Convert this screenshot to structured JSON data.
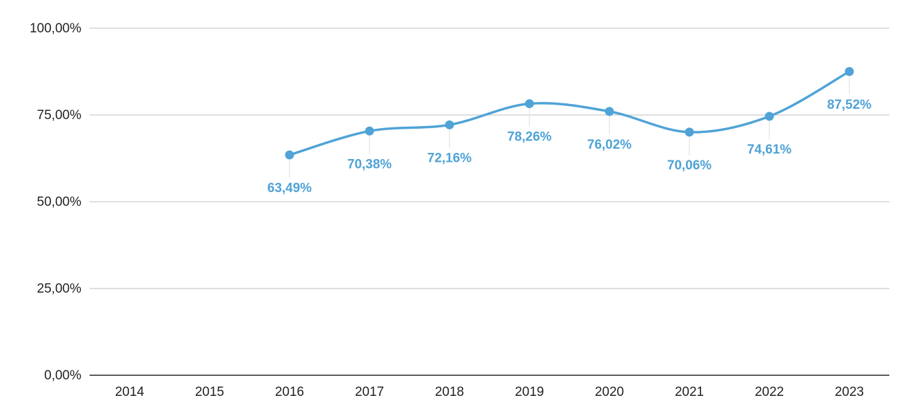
{
  "chart_data": {
    "type": "line",
    "title": "",
    "xlabel": "",
    "ylabel": "",
    "categories": [
      "2014",
      "2015",
      "2016",
      "2017",
      "2018",
      "2019",
      "2020",
      "2021",
      "2022",
      "2023"
    ],
    "series": [
      {
        "values": [
          null,
          null,
          63.49,
          70.38,
          72.16,
          78.26,
          76.02,
          70.06,
          74.61,
          87.52
        ],
        "data_labels": [
          null,
          null,
          "63,49%",
          "70,38%",
          "72,16%",
          "78,26%",
          "76,02%",
          "70,06%",
          "74,61%",
          "87,52%"
        ],
        "color": "#4fa3d6",
        "smooth": true
      }
    ],
    "ylim": [
      0,
      100
    ],
    "y_ticks": [
      0,
      25,
      50,
      75,
      100
    ],
    "y_tick_labels": [
      "0,00%",
      "25,00%",
      "50,00%",
      "75,00%",
      "100,00%"
    ],
    "grid": true,
    "legend": "none",
    "gridline_color": "#cccccc",
    "axis_color": "#222222"
  }
}
